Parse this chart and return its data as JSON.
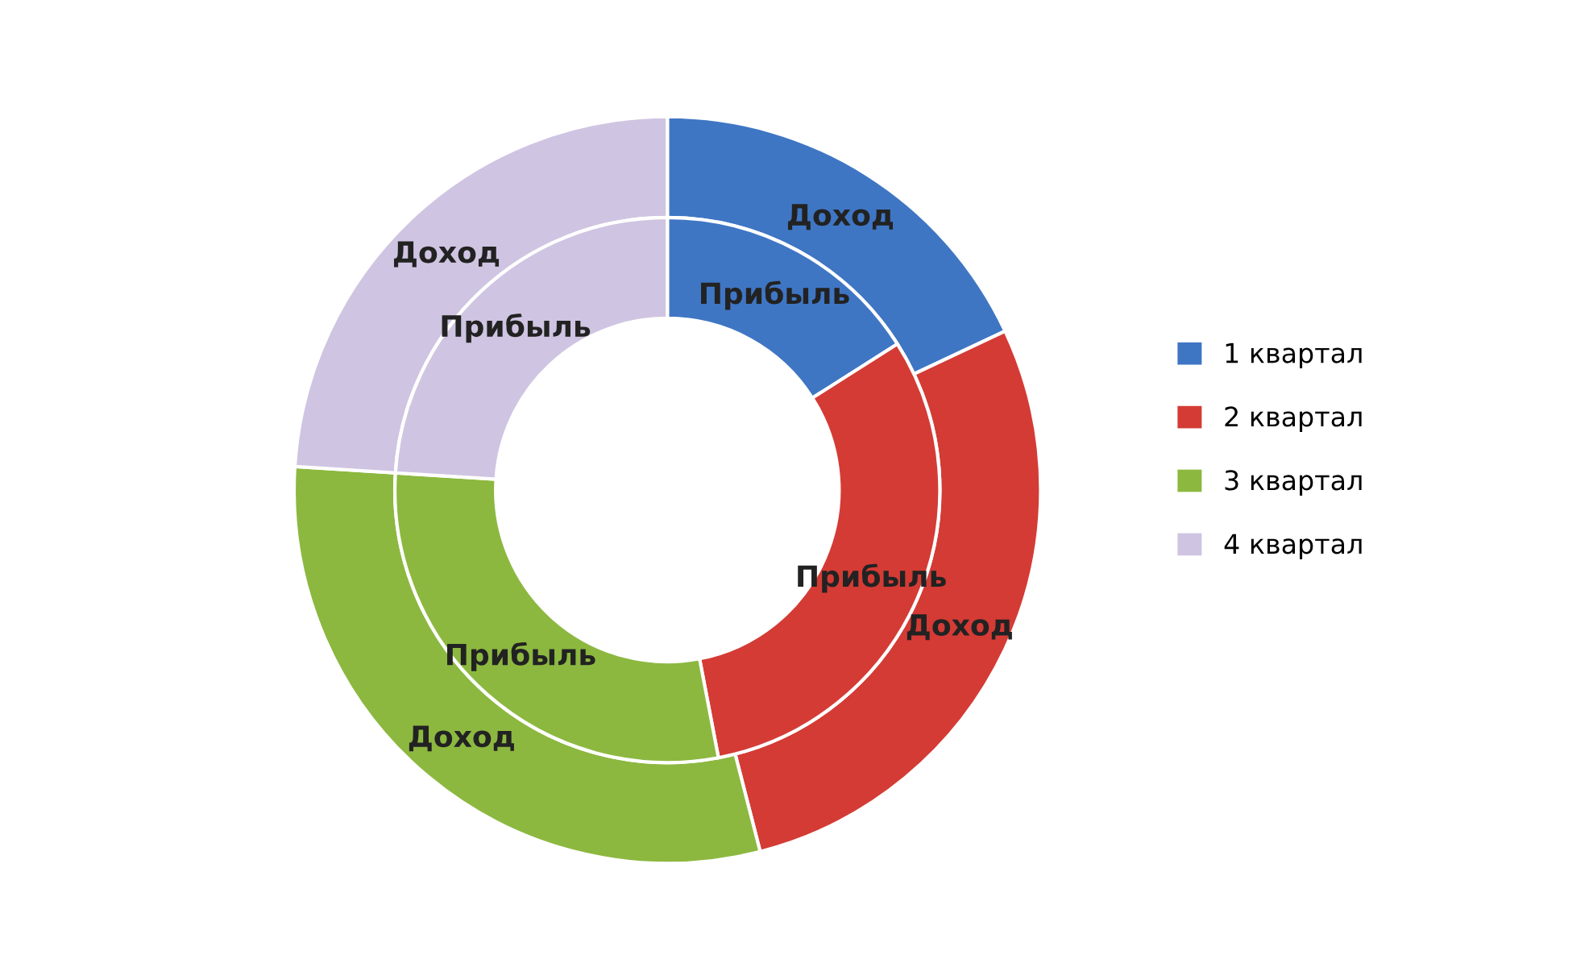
{
  "chart_data": {
    "type": "donut",
    "categories": [
      "1 квартал",
      "2 квартал",
      "3 квартал",
      "4 квартал"
    ],
    "colors": [
      "#3f76c4",
      "#d43b35",
      "#8cb840",
      "#cfc5e2"
    ],
    "series": [
      {
        "name": "Доход",
        "values": [
          18,
          28,
          30,
          24
        ]
      },
      {
        "name": "Прибыль",
        "values": [
          16,
          31,
          29,
          24
        ]
      }
    ],
    "legend": "right"
  }
}
